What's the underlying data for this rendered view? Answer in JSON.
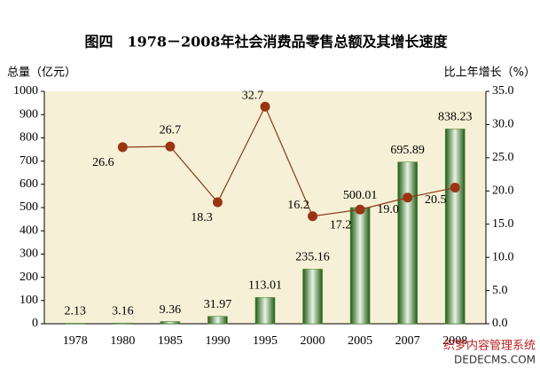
{
  "chart_data": {
    "type": "bar_line",
    "title": "图四　1978－2008年社会消费品零售总额及其增长速度",
    "y_label": "总量（亿元）",
    "y2_label": "比上年增长（%）",
    "categories": [
      "1978",
      "1980",
      "1985",
      "1990",
      "1995",
      "2000",
      "2005",
      "2007",
      "2008"
    ],
    "series": [
      {
        "name": "总量",
        "type": "bar",
        "color": "#4d8a3a",
        "values": [
          2.13,
          3.16,
          9.36,
          31.97,
          113.01,
          235.16,
          500.01,
          695.89,
          838.23
        ]
      },
      {
        "name": "比上年增长",
        "type": "line",
        "axis": "y2",
        "color": "#8b3a1a",
        "marker_color": "#9a3412",
        "values": [
          null,
          26.6,
          26.7,
          18.3,
          32.7,
          16.2,
          17.2,
          19.0,
          20.5
        ],
        "value_labels": [
          null,
          "26.6",
          "26.7",
          "18.3",
          "32.7",
          "16.2",
          "17.2",
          "19.0",
          "20.5"
        ]
      }
    ],
    "ylim": [
      0,
      1000
    ],
    "yticks": [
      0,
      100,
      200,
      300,
      400,
      500,
      600,
      700,
      800,
      900,
      1000
    ],
    "y2lim": [
      0,
      35
    ],
    "y2ticks": [
      {
        "value": 0,
        "label": "0.0"
      },
      {
        "value": 5,
        "label": "5.0"
      },
      {
        "value": 10,
        "label": "10.0"
      },
      {
        "value": 15,
        "label": "15.0"
      },
      {
        "value": 20,
        "label": "20.0"
      },
      {
        "value": 25,
        "label": "25.0"
      },
      {
        "value": 30,
        "label": "30.0"
      },
      {
        "value": 35,
        "label": "35.0"
      }
    ],
    "grid": false,
    "watermark": [
      "织梦内容管理系统",
      "DEDECMS.COM"
    ]
  }
}
